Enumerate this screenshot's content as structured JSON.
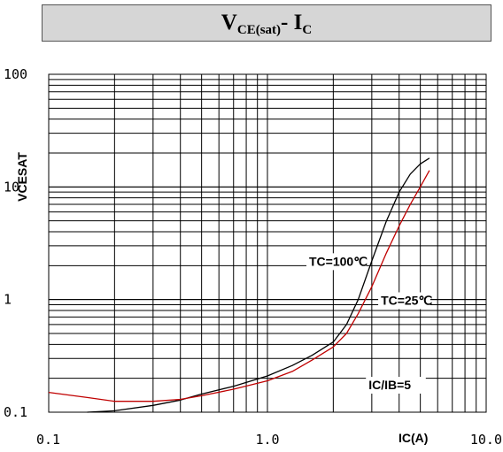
{
  "chart_data": {
    "type": "line",
    "title": {
      "main": "V",
      "main_sub": "CE(sat)",
      "sep": "- I",
      "sep_sub": "C"
    },
    "xlabel": "IC(A)",
    "ylabel": "VCESAT",
    "x_scale": "log",
    "y_scale": "log",
    "xlim": [
      0.1,
      10.0
    ],
    "ylim": [
      0.1,
      100
    ],
    "x_ticks": [
      {
        "value": 0.1,
        "label": "0.1"
      },
      {
        "value": 1.0,
        "label": "1.0"
      },
      {
        "value": 10.0,
        "label": "10.0"
      }
    ],
    "y_ticks": [
      {
        "value": 0.1,
        "label": "0.1"
      },
      {
        "value": 1,
        "label": "1"
      },
      {
        "value": 10,
        "label": "10"
      },
      {
        "value": 100,
        "label": "100"
      }
    ],
    "grid": true,
    "series": [
      {
        "name": "TC=100℃",
        "color": "#000000",
        "x": [
          0.15,
          0.2,
          0.3,
          0.4,
          0.5,
          0.7,
          1.0,
          1.3,
          1.6,
          2.0,
          2.3,
          2.6,
          3.0,
          3.5,
          4.0,
          4.5,
          5.0,
          5.5
        ],
        "y": [
          0.1,
          0.103,
          0.115,
          0.128,
          0.145,
          0.17,
          0.21,
          0.26,
          0.32,
          0.42,
          0.6,
          1.0,
          2.2,
          5.0,
          9.0,
          13.0,
          16.0,
          18.0
        ]
      },
      {
        "name": "TC=25℃",
        "color": "#c00000",
        "x": [
          0.1,
          0.15,
          0.2,
          0.3,
          0.4,
          0.5,
          0.7,
          1.0,
          1.3,
          1.6,
          2.0,
          2.3,
          2.6,
          3.0,
          3.5,
          4.0,
          4.5,
          5.0,
          5.5
        ],
        "y": [
          0.15,
          0.135,
          0.125,
          0.125,
          0.13,
          0.14,
          0.16,
          0.19,
          0.23,
          0.29,
          0.38,
          0.5,
          0.75,
          1.3,
          2.6,
          4.5,
          7.0,
          10.0,
          14.0
        ]
      }
    ],
    "annotations": [
      {
        "text": "TC=100℃",
        "x": 1.55,
        "y": 2.0
      },
      {
        "text": "TC=25℃",
        "x": 3.3,
        "y": 0.9
      },
      {
        "text": "IC/IB=5",
        "x": 2.9,
        "y": 0.16
      }
    ]
  }
}
